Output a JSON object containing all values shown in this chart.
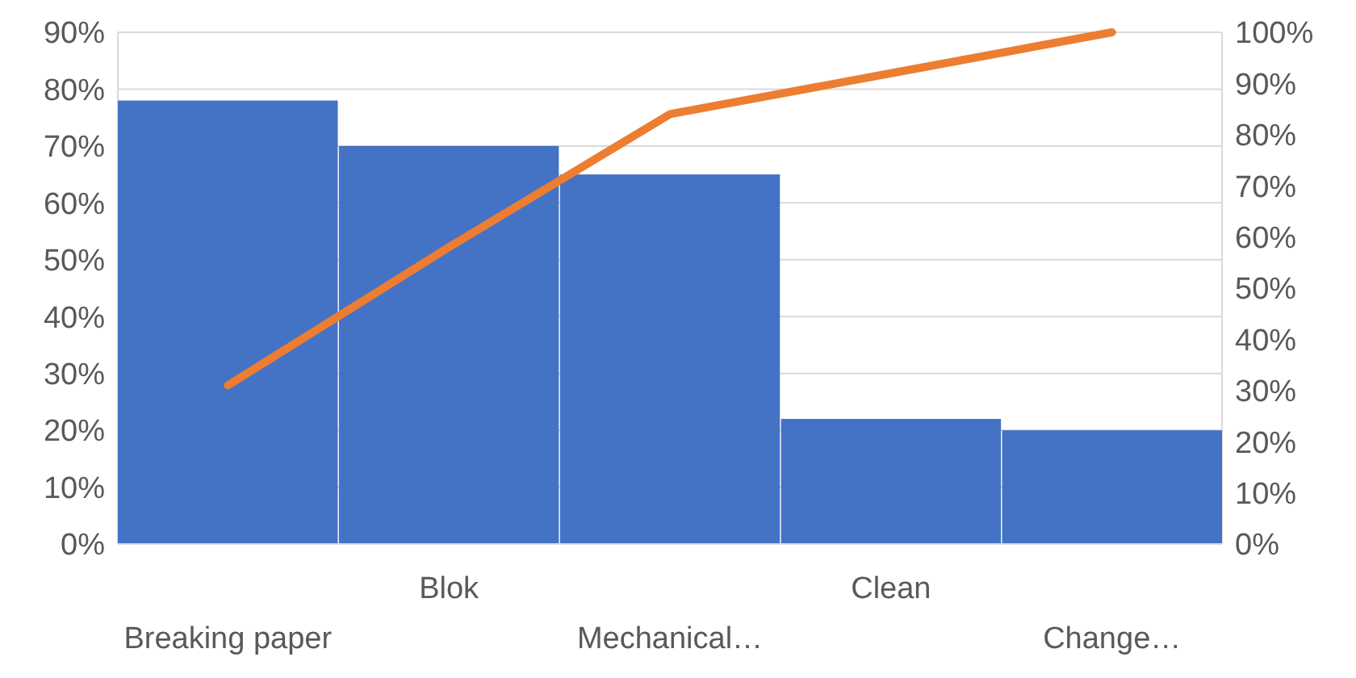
{
  "chart_data": {
    "type": "bar",
    "categories": [
      "Breaking paper",
      "Blok",
      "Mechanical…",
      "Clean",
      "Change…"
    ],
    "series": [
      {
        "color": "#4472c4",
        "values": [
          78,
          70,
          65,
          22,
          20
        ]
      },
      {
        "type": "line",
        "axis": "y2",
        "color": "#ed7d31",
        "values": [
          31,
          58,
          84,
          92,
          100
        ]
      }
    ],
    "ylim": [
      0,
      90
    ],
    "yticks": [
      {
        "value": 0,
        "label": "0%"
      },
      {
        "value": 10,
        "label": "10%"
      },
      {
        "value": 20,
        "label": "20%"
      },
      {
        "value": 30,
        "label": "30%"
      },
      {
        "value": 40,
        "label": "40%"
      },
      {
        "value": 50,
        "label": "50%"
      },
      {
        "value": 60,
        "label": "60%"
      },
      {
        "value": 70,
        "label": "70%"
      },
      {
        "value": 80,
        "label": "80%"
      },
      {
        "value": 90,
        "label": "90%"
      }
    ],
    "y2lim": [
      0,
      100
    ],
    "y2ticks": [
      {
        "value": 0,
        "label": "0%"
      },
      {
        "value": 10,
        "label": "10%"
      },
      {
        "value": 20,
        "label": "20%"
      },
      {
        "value": 30,
        "label": "30%"
      },
      {
        "value": 40,
        "label": "40%"
      },
      {
        "value": 50,
        "label": "50%"
      },
      {
        "value": 60,
        "label": "60%"
      },
      {
        "value": 70,
        "label": "70%"
      },
      {
        "value": 80,
        "label": "80%"
      },
      {
        "value": 90,
        "label": "90%"
      },
      {
        "value": 100,
        "label": "100%"
      }
    ],
    "grid": "y",
    "marker": "none",
    "line_style": "solid"
  }
}
